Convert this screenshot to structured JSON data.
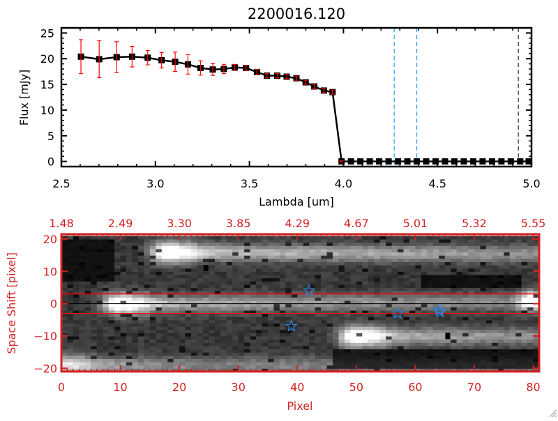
{
  "colors": {
    "axis_top": "#000000",
    "axis_bottom": "#d42020",
    "errorbar": "#ff0000",
    "marker": "#000000",
    "vline_cyan": "#2a9df4",
    "star": "#2a8cf4"
  },
  "chart_data": [
    {
      "type": "line",
      "title": "2200016.120",
      "xlabel": "Lambda [um]",
      "ylabel": "Flux [mJy]",
      "xlim": [
        2.5,
        5.0
      ],
      "ylim": [
        -1,
        26
      ],
      "xticks": [
        2.5,
        3.0,
        3.5,
        4.0,
        4.5,
        5.0
      ],
      "xtick_labels": [
        "2.5",
        "3.0",
        "3.5",
        "4.0",
        "4.5",
        "5.0"
      ],
      "yticks": [
        0,
        5,
        10,
        15,
        20,
        25
      ],
      "ytick_labels": [
        "0",
        "5",
        "10",
        "15",
        "20",
        "25"
      ],
      "series": [
        {
          "name": "flux",
          "x": [
            2.604,
            2.701,
            2.794,
            2.876,
            2.959,
            3.033,
            3.105,
            3.173,
            3.24,
            3.305,
            3.364,
            3.422,
            3.482,
            3.54,
            3.593,
            3.648,
            3.698,
            3.75,
            3.799,
            3.845,
            3.896,
            3.942,
            3.99,
            4.04,
            4.09,
            4.14,
            4.19,
            4.24,
            4.29,
            4.34,
            4.39,
            4.44,
            4.49,
            4.54,
            4.59,
            4.64,
            4.69,
            4.74,
            4.79,
            4.84,
            4.89,
            4.94,
            4.985
          ],
          "y": [
            20.4,
            19.9,
            20.3,
            20.4,
            20.2,
            19.7,
            19.4,
            18.9,
            18.2,
            17.9,
            18.0,
            18.3,
            18.2,
            17.4,
            16.7,
            16.7,
            16.5,
            16.2,
            15.4,
            14.6,
            13.8,
            13.5,
            0,
            0,
            0,
            0,
            0,
            0,
            0,
            0,
            0,
            0,
            0,
            0,
            0,
            0,
            0,
            0,
            0,
            0,
            0,
            0,
            0
          ],
          "yerr": [
            3.3,
            3.6,
            3.0,
            2.0,
            1.4,
            1.5,
            1.9,
            1.9,
            1.4,
            1.15,
            0.9,
            0.6,
            0.5,
            0.5,
            0.4,
            0.4,
            0.4,
            0.4,
            0.4,
            0.4,
            0.4,
            0.4,
            0.1,
            0,
            0,
            0,
            0,
            0,
            0,
            0,
            0,
            0,
            0,
            0,
            0,
            0,
            0,
            0,
            0,
            0,
            0,
            0,
            0
          ]
        }
      ],
      "hline_zero": 0,
      "vlines_cyan": [
        4.27,
        4.39
      ],
      "vline_black": 4.93
    },
    {
      "type": "heatmap",
      "xlabel": "Pixel",
      "ylabel": "Space Shift [pixel]",
      "xlim": [
        0,
        81
      ],
      "ylim": [
        -21,
        21.5
      ],
      "xticks": [
        0,
        10,
        20,
        30,
        40,
        50,
        60,
        70,
        80
      ],
      "xtick_labels": [
        "0",
        "10",
        "20",
        "30",
        "40",
        "50",
        "60",
        "70",
        "80"
      ],
      "yticks": [
        -20,
        -10,
        0,
        10,
        20
      ],
      "ytick_labels": [
        "−20",
        "−10",
        "0",
        "10",
        "20"
      ],
      "top_tick_labels": [
        "1.48",
        "2.49",
        "3.30",
        "3.85",
        "4.29",
        "4.67",
        "5.01",
        "5.32",
        "5.55"
      ],
      "hlines_red": [
        3,
        -3
      ],
      "hline_black": 0,
      "stars": [
        {
          "x": 42,
          "y": 4
        },
        {
          "x": 39,
          "y": -7
        },
        {
          "x": 57,
          "y": -3
        },
        {
          "x": 64,
          "y": -2
        },
        {
          "x": 64.2,
          "y": -2.6
        }
      ],
      "masked_pixels": [
        {
          "x": 24.5,
          "y": 11
        },
        {
          "x": 65.5,
          "y": -10
        }
      ]
    }
  ]
}
